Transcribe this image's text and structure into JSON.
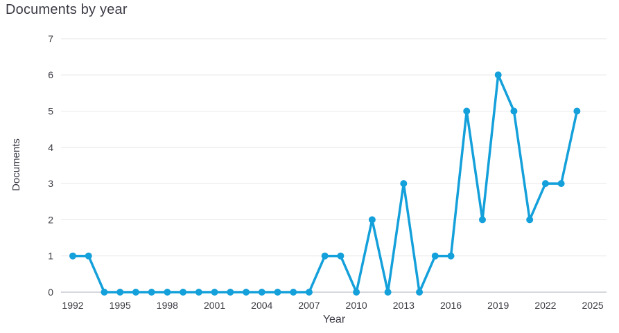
{
  "title": "Documents by year",
  "chart_data": {
    "type": "line",
    "title": "Documents by year",
    "xlabel": "Year",
    "ylabel": "Documents",
    "series_name": "Documents",
    "x": [
      1992,
      1993,
      1994,
      1995,
      1996,
      1997,
      1998,
      1999,
      2000,
      2001,
      2002,
      2003,
      2004,
      2005,
      2006,
      2007,
      2008,
      2009,
      2010,
      2011,
      2012,
      2013,
      2014,
      2015,
      2016,
      2017,
      2018,
      2019,
      2020,
      2021,
      2022,
      2023,
      2024
    ],
    "values": [
      1,
      1,
      0,
      0,
      0,
      0,
      0,
      0,
      0,
      0,
      0,
      0,
      0,
      0,
      0,
      0,
      1,
      1,
      0,
      2,
      0,
      3,
      0,
      1,
      1,
      5,
      2,
      6,
      5,
      2,
      3,
      3,
      5
    ],
    "x_ticks": [
      1992,
      1995,
      1998,
      2001,
      2004,
      2007,
      2010,
      2013,
      2016,
      2019,
      2022,
      2025
    ],
    "y_ticks": [
      0,
      1,
      2,
      3,
      4,
      5,
      6,
      7
    ],
    "xlim": [
      1992,
      2025
    ],
    "ylim": [
      0,
      7
    ],
    "grid": "horizontal",
    "legend": "none",
    "colors": {
      "line": "#14a0da",
      "marker": "#14a0da",
      "grid": "#e9e9e9",
      "zero_line": "#c9ccd4",
      "tick_text": "#3a3a42",
      "title_text": "#3b3b46"
    }
  }
}
